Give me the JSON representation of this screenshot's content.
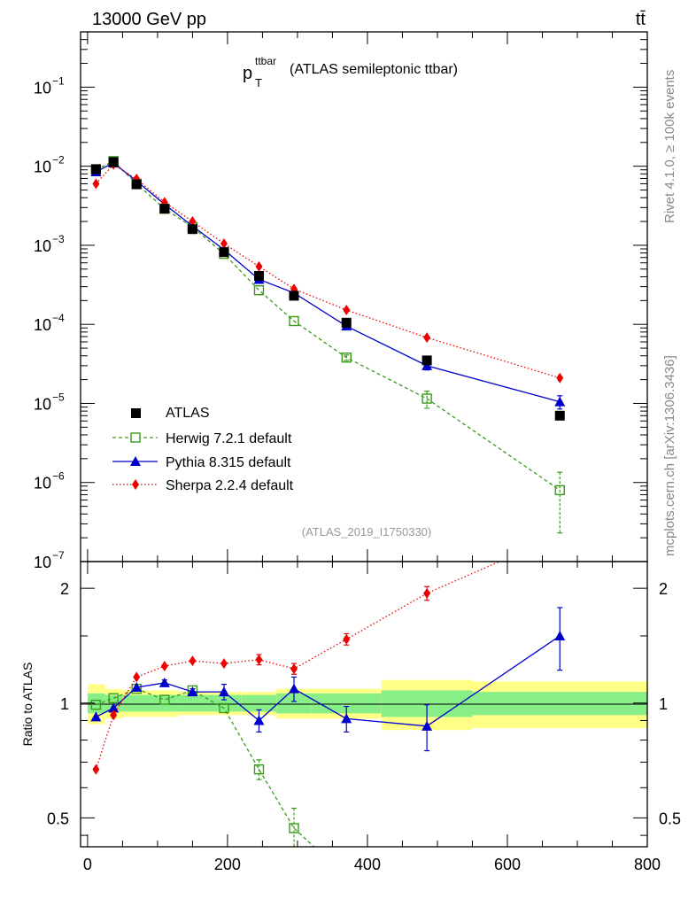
{
  "header": {
    "left": "13000 GeV pp",
    "right": "tt̄"
  },
  "side_labels": {
    "rivet": "Rivet 4.1.0, ≥ 100k events",
    "source": "mcplots.cern.ch [arXiv:1306.3436]"
  },
  "colors": {
    "atlas": "#000000",
    "herwig": "#3a9a1a",
    "pythia": "#0000cc",
    "sherpa": "#ee0000",
    "band_outer": "#ffff88",
    "band_inner": "#88ee88"
  },
  "chart_data": [
    {
      "type": "scatter",
      "panel": "main",
      "title_main": "p",
      "title_sub": "T",
      "title_sup": "ttbar",
      "title_rest": "(ATLAS semileptonic ttbar)",
      "analysis_label": "(ATLAS_2019_I1750330)",
      "yscale": "log",
      "ylim": [
        1e-07,
        0.5
      ],
      "xlim": [
        -10,
        800
      ],
      "ytick_labels": [
        {
          "value": 1e-07,
          "base": "10",
          "exp": "−7"
        },
        {
          "value": 1e-06,
          "base": "10",
          "exp": "−6"
        },
        {
          "value": 1e-05,
          "base": "10",
          "exp": "−5"
        },
        {
          "value": 0.0001,
          "base": "10",
          "exp": "−4"
        },
        {
          "value": 0.001,
          "base": "10",
          "exp": "−3"
        },
        {
          "value": 0.01,
          "base": "10",
          "exp": "−2"
        },
        {
          "value": 0.1,
          "base": "10",
          "exp": "−1"
        }
      ],
      "legend_position": "lower-left",
      "series": [
        {
          "name": "ATLAS",
          "key": "atlas",
          "x": [
            12,
            37,
            70,
            110,
            150,
            195,
            245,
            295,
            370,
            485,
            675
          ],
          "y": [
            0.0092,
            0.0113,
            0.0059,
            0.0029,
            0.0016,
            0.00082,
            0.00041,
            0.00023,
            0.000105,
            3.5e-05,
            7e-06
          ]
        },
        {
          "name": "Herwig 7.2.1 default",
          "key": "herwig",
          "x": [
            12,
            37,
            70,
            110,
            150,
            195,
            245,
            295,
            370,
            485,
            675
          ],
          "y": [
            0.009,
            0.0116,
            0.006,
            0.0029,
            0.0017,
            0.00078,
            0.00027,
            0.00011,
            3.8e-05,
            1.15e-05,
            8e-07
          ],
          "err_hi": [
            0,
            0,
            0,
            0,
            0,
            0,
            0,
            0,
            3e-06,
            2.8e-06,
            5.5e-07
          ],
          "err_lo": [
            0,
            0,
            0,
            0,
            0,
            0,
            0,
            0,
            3e-06,
            2.8e-06,
            5.7e-07
          ]
        },
        {
          "name": "Pythia 8.315 default",
          "key": "pythia",
          "x": [
            12,
            37,
            70,
            110,
            150,
            195,
            245,
            295,
            370,
            485,
            675
          ],
          "y": [
            0.0085,
            0.011,
            0.0065,
            0.0033,
            0.00175,
            0.00088,
            0.00037,
            0.00025,
            9.5e-05,
            3e-05,
            1.05e-05
          ],
          "err_hi": [
            0,
            0,
            0,
            0,
            0,
            0,
            2e-05,
            2e-05,
            8e-06,
            3.5e-06,
            2e-06
          ],
          "err_lo": [
            0,
            0,
            0,
            0,
            0,
            0,
            2e-05,
            2e-05,
            8e-06,
            3.5e-06,
            2e-06
          ]
        },
        {
          "name": "Sherpa 2.2.4 default",
          "key": "sherpa",
          "x": [
            12,
            37,
            70,
            110,
            150,
            195,
            245,
            295,
            370,
            485,
            675
          ],
          "y": [
            0.006,
            0.0105,
            0.0069,
            0.0035,
            0.002,
            0.00105,
            0.00054,
            0.00028,
            0.000152,
            6.8e-05,
            2.1e-05
          ]
        }
      ]
    },
    {
      "type": "scatter",
      "panel": "ratio",
      "ylabel": "Ratio to ATLAS",
      "yscale": "log",
      "ylim": [
        0.42,
        2.35
      ],
      "xlim": [
        -10,
        800
      ],
      "yticks": [
        0.5,
        1,
        2
      ],
      "ytick_labels": [
        "0.5",
        "1",
        "2"
      ],
      "xticks": [
        0,
        200,
        400,
        600,
        800
      ],
      "xtick_labels": [
        "0",
        "200",
        "400",
        "600",
        "800"
      ],
      "bins": [
        {
          "lo": 0,
          "hi": 25,
          "in": 0.06,
          "out": 0.12
        },
        {
          "lo": 25,
          "hi": 50,
          "in": 0.05,
          "out": 0.09
        },
        {
          "lo": 50,
          "hi": 90,
          "in": 0.05,
          "out": 0.08
        },
        {
          "lo": 90,
          "hi": 130,
          "in": 0.05,
          "out": 0.08
        },
        {
          "lo": 130,
          "hi": 170,
          "in": 0.05,
          "out": 0.07
        },
        {
          "lo": 170,
          "hi": 220,
          "in": 0.05,
          "out": 0.07
        },
        {
          "lo": 220,
          "hi": 270,
          "in": 0.05,
          "out": 0.07
        },
        {
          "lo": 270,
          "hi": 320,
          "in": 0.06,
          "out": 0.09
        },
        {
          "lo": 320,
          "hi": 420,
          "in": 0.06,
          "out": 0.09
        },
        {
          "lo": 420,
          "hi": 550,
          "in": 0.08,
          "out": 0.15
        },
        {
          "lo": 550,
          "hi": 800,
          "in": 0.07,
          "out": 0.14
        }
      ],
      "series": [
        {
          "name": "Herwig 7.2.1 default",
          "key": "herwig",
          "x": [
            12,
            37,
            70,
            110,
            150,
            195,
            245,
            295
          ],
          "y": [
            0.99,
            1.03,
            1.09,
            1.02,
            1.08,
            0.97,
            0.67,
            0.47
          ],
          "line_x": [
            12,
            37,
            70,
            110,
            150,
            195,
            245,
            295,
            370
          ],
          "line_y": [
            0.99,
            1.03,
            1.09,
            1.02,
            1.08,
            0.97,
            0.67,
            0.47,
            0.35
          ],
          "err": [
            0,
            0,
            0,
            0,
            0,
            0,
            0.04,
            0.06
          ]
        },
        {
          "name": "Pythia 8.315 default",
          "key": "pythia",
          "x": [
            12,
            37,
            70,
            110,
            150,
            195,
            245,
            295,
            370,
            485,
            675
          ],
          "y": [
            0.92,
            0.97,
            1.1,
            1.13,
            1.07,
            1.07,
            0.9,
            1.09,
            0.91,
            0.87,
            1.5
          ],
          "err": [
            0,
            0,
            0,
            0.02,
            0.02,
            0.05,
            0.06,
            0.08,
            0.07,
            0.12,
            0.28
          ]
        },
        {
          "name": "Sherpa 2.2.4 default",
          "key": "sherpa",
          "x": [
            12,
            37,
            70,
            110,
            150,
            195,
            245,
            295,
            370,
            485
          ],
          "y": [
            0.67,
            0.93,
            1.17,
            1.25,
            1.29,
            1.27,
            1.3,
            1.23,
            1.47,
            1.94
          ],
          "line_x": [
            12,
            37,
            70,
            110,
            150,
            195,
            245,
            295,
            370,
            485,
            600
          ],
          "line_y": [
            0.67,
            0.93,
            1.17,
            1.25,
            1.29,
            1.27,
            1.3,
            1.23,
            1.47,
            1.94,
            2.4
          ],
          "err": [
            0,
            0,
            0,
            0,
            0,
            0,
            0.04,
            0.04,
            0.05,
            0.08
          ]
        }
      ]
    }
  ]
}
